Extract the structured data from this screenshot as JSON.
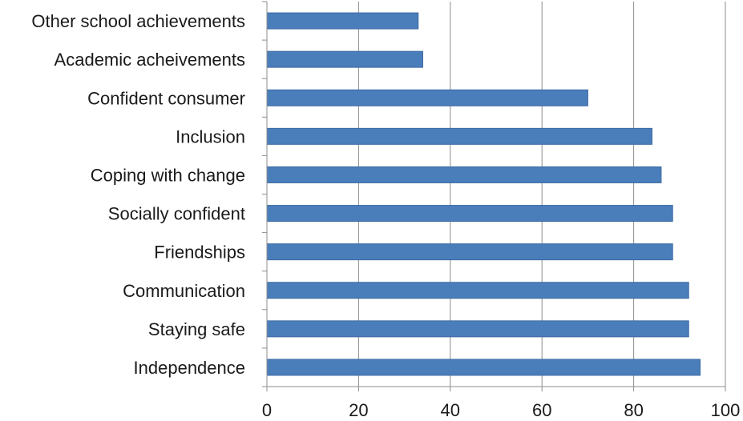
{
  "chart_data": {
    "type": "bar",
    "orientation": "horizontal",
    "title": "",
    "xlabel": "",
    "ylabel": "",
    "categories": [
      "Other school achievements",
      "Academic acheivements",
      "Confident consumer",
      "Inclusion",
      "Coping with change",
      "Socially confident",
      "Friendships",
      "Communication",
      "Staying safe",
      "Independence"
    ],
    "values": [
      33,
      34,
      70,
      84,
      86,
      88.5,
      88.5,
      92,
      92,
      94.5
    ],
    "xlim": [
      0,
      100
    ],
    "x_ticks": [
      "0",
      "20",
      "40",
      "60",
      "80",
      "100"
    ],
    "grid": "vertical",
    "legend": "none",
    "bar_color": "#4a7ebb",
    "bar_stroke": "#3c6aa3",
    "grid_color": "#8c8c8c",
    "axis_color": "#8c8c8c"
  }
}
